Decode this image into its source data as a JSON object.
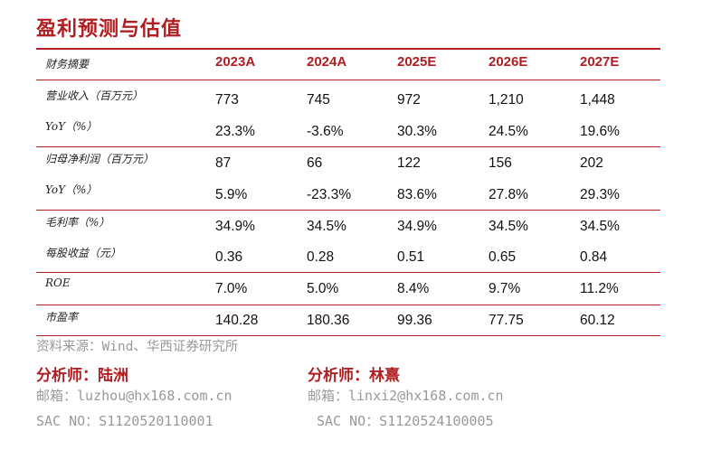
{
  "title": "盈利预测与估值",
  "header": {
    "label": "财务摘要",
    "years": [
      "2023A",
      "2024A",
      "2025E",
      "2026E",
      "2027E"
    ]
  },
  "rows": [
    {
      "label": "营业收入（百万元）",
      "values": [
        "773",
        "745",
        "972",
        "1,210",
        "1,448"
      ]
    },
    {
      "label": "YoY（%）",
      "values": [
        "23.3%",
        "-3.6%",
        "30.3%",
        "24.5%",
        "19.6%"
      ]
    },
    {
      "label": "归母净利润（百万元）",
      "values": [
        "87",
        "66",
        "122",
        "156",
        "202"
      ]
    },
    {
      "label": "YoY（%）",
      "values": [
        "5.9%",
        "-23.3%",
        "83.6%",
        "27.8%",
        "29.3%"
      ]
    },
    {
      "label": "毛利率（%）",
      "values": [
        "34.9%",
        "34.5%",
        "34.9%",
        "34.5%",
        "34.5%"
      ]
    },
    {
      "label": "每股收益（元）",
      "values": [
        "0.36",
        "0.28",
        "0.51",
        "0.65",
        "0.84"
      ]
    },
    {
      "label": "ROE",
      "values": [
        "7.0%",
        "5.0%",
        "8.4%",
        "9.7%",
        "11.2%"
      ]
    },
    {
      "label": "市盈率",
      "values": [
        "140.28",
        "180.36",
        "99.36",
        "77.75",
        "60.12"
      ]
    }
  ],
  "source": "资料来源：Wind、华西证券研究所",
  "analysts": [
    {
      "name": "分析师：陆洲",
      "email": "邮箱：luzhou@hx168.com.cn",
      "sac": "SAC NO：S1120520110001"
    },
    {
      "name": "分析师：林熹",
      "email": "邮箱：linxi2@hx168.com.cn",
      "sac": "SAC NO：S1120524100005"
    }
  ],
  "colors": {
    "accent": "#b01e22",
    "muted": "#999999"
  }
}
